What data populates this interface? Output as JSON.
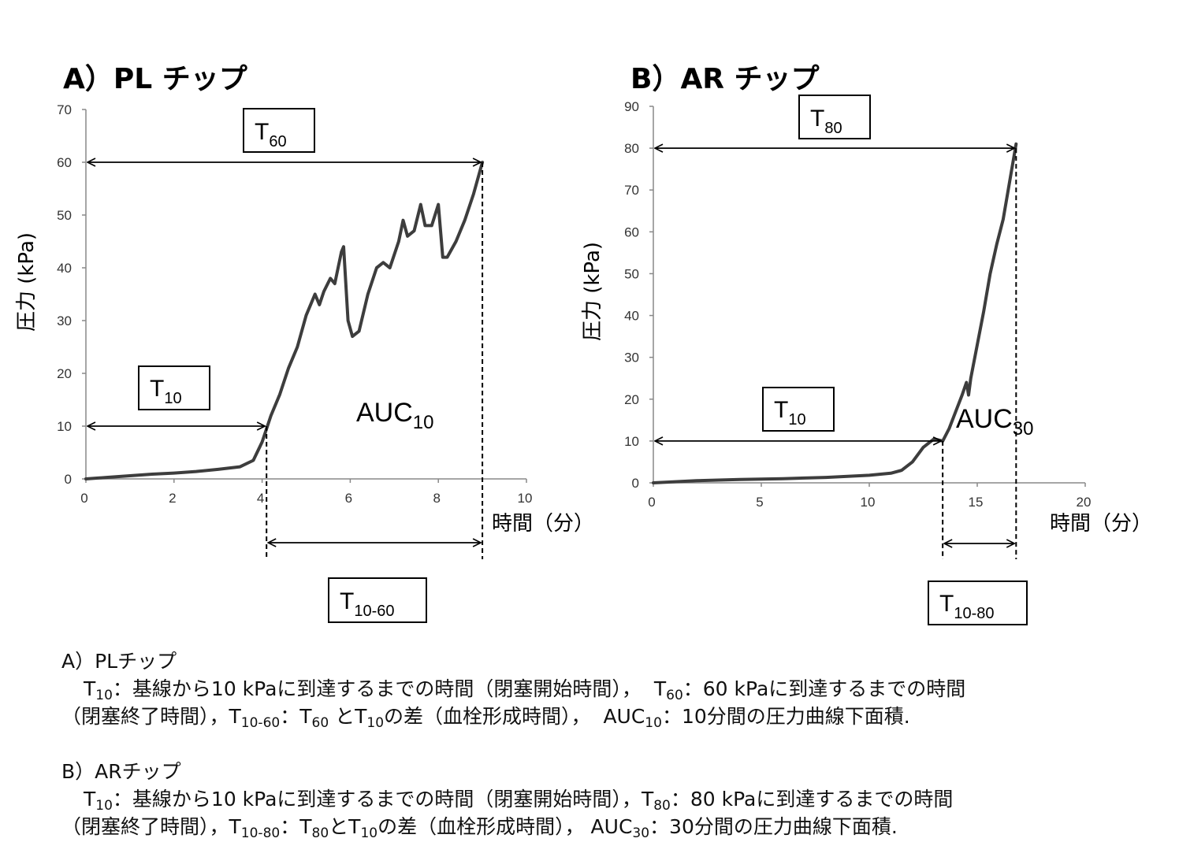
{
  "charts": {
    "A": {
      "panel_title": "A）PL チップ",
      "ylabel": "圧力 (kPa)",
      "xlabel": "時間（分）",
      "box_t_end": {
        "main": "T",
        "sub": "60"
      },
      "box_t10": {
        "main": "T",
        "sub": "10"
      },
      "box_t_range": {
        "main": "T",
        "sub": "10-60"
      },
      "auc": {
        "main": "AUC",
        "sub": "10"
      }
    },
    "B": {
      "panel_title": "B）AR チップ",
      "ylabel": "圧力 (kPa)",
      "xlabel": "時間（分）",
      "box_t_end": {
        "main": "T",
        "sub": "80"
      },
      "box_t10": {
        "main": "T",
        "sub": "10"
      },
      "box_t_range": {
        "main": "T",
        "sub": "10-80"
      },
      "auc": {
        "main": "AUC",
        "sub": "30"
      }
    }
  },
  "chart_data": [
    {
      "type": "line",
      "title": "A）PL チップ",
      "xlabel": "時間（分）",
      "ylabel": "圧力 (kPa)",
      "xlim": [
        0,
        10
      ],
      "ylim": [
        0,
        70
      ],
      "xticks": [
        0,
        2,
        4,
        6,
        8,
        10
      ],
      "yticks": [
        0,
        10,
        20,
        30,
        40,
        50,
        60,
        70
      ],
      "x": [
        0,
        0.5,
        1,
        1.5,
        2,
        2.5,
        3,
        3.5,
        3.8,
        4.0,
        4.2,
        4.4,
        4.6,
        4.8,
        5.0,
        5.2,
        5.3,
        5.4,
        5.55,
        5.65,
        5.8,
        5.85,
        5.95,
        6.05,
        6.2,
        6.4,
        6.6,
        6.75,
        6.9,
        7.1,
        7.2,
        7.3,
        7.45,
        7.6,
        7.7,
        7.85,
        8.0,
        8.1,
        8.2,
        8.4,
        8.6,
        8.8,
        9.0
      ],
      "y": [
        0,
        0.3,
        0.6,
        0.9,
        1.1,
        1.4,
        1.8,
        2.3,
        3.5,
        7,
        12,
        16,
        21,
        25,
        31,
        35,
        33,
        35.5,
        38,
        37,
        43,
        44,
        30,
        27,
        28,
        35,
        40,
        41,
        40,
        45,
        49,
        46,
        47,
        52,
        48,
        48,
        52,
        42,
        42,
        45,
        49,
        54,
        60
      ],
      "markers": [
        {
          "label": "T10",
          "x": 4.1,
          "y": 10
        },
        {
          "label": "T60",
          "x": 9.0,
          "y": 60
        }
      ]
    },
    {
      "type": "line",
      "title": "B）AR チップ",
      "xlabel": "時間（分）",
      "ylabel": "圧力 (kPa)",
      "xlim": [
        0,
        20
      ],
      "ylim": [
        0,
        90
      ],
      "xticks": [
        0,
        5,
        10,
        15,
        20
      ],
      "yticks": [
        0,
        10,
        20,
        30,
        40,
        50,
        60,
        70,
        80,
        90
      ],
      "x": [
        0,
        2,
        4,
        6,
        8,
        10,
        11,
        11.5,
        12,
        12.5,
        13,
        13.4,
        13.7,
        14,
        14.3,
        14.5,
        14.6,
        14.7,
        15,
        15.3,
        15.6,
        15.9,
        16.2,
        16.5,
        16.8
      ],
      "y": [
        0,
        0.5,
        0.8,
        1.0,
        1.3,
        1.8,
        2.3,
        3,
        5,
        8.5,
        10.5,
        10,
        13,
        17,
        21,
        24,
        21,
        25,
        33,
        41,
        50,
        57,
        63,
        72,
        81
      ],
      "markers": [
        {
          "label": "T10",
          "x": 13.4,
          "y": 10
        },
        {
          "label": "T80",
          "x": 16.8,
          "y": 80
        }
      ]
    }
  ],
  "caption": {
    "a": {
      "header": "A）PLチップ",
      "l1_t10": "T",
      "l1_t10_sub": "10",
      "l1_text1": "：基線から10 kPaに到達するまでの時間（閉塞開始時間），",
      "l1_tend": "T",
      "l1_tend_sub": "60",
      "l1_text2": "：60 kPaに到達するまでの時間",
      "l2_text0": "（閉塞終了時間），",
      "l2_trange": "T",
      "l2_trange_sub": "10-60",
      "l2_text1": "：",
      "l2_t1": "T",
      "l2_t1_sub": "60",
      "l2_text2": " と",
      "l2_t2": "T",
      "l2_t2_sub": "10",
      "l2_text3": "の差（血栓形成時間），",
      "l2_auc": "AUC",
      "l2_auc_sub": "10",
      "l2_text4": "：10分間の圧力曲線下面積."
    },
    "b": {
      "header": "B）ARチップ",
      "l1_t10": "T",
      "l1_t10_sub": "10",
      "l1_text1": "：基線から10 kPaに到達するまでの時間（閉塞開始時間），",
      "l1_tend": "T",
      "l1_tend_sub": "80",
      "l1_text2": "：80 kPaに到達するまでの時間",
      "l2_text0": "（閉塞終了時間），",
      "l2_trange": "T",
      "l2_trange_sub": "10-80",
      "l2_text1": "：",
      "l2_t1": "T",
      "l2_t1_sub": "80",
      "l2_text2": "と",
      "l2_t2": "T",
      "l2_t2_sub": "10",
      "l2_text3": "の差（血栓形成時間），",
      "l2_auc": "AUC",
      "l2_auc_sub": "30",
      "l2_text4": "：30分間の圧力曲線下面積."
    }
  },
  "colors": {
    "curve": "#3d3d3d",
    "axis": "#888888",
    "ink": "#000000"
  }
}
